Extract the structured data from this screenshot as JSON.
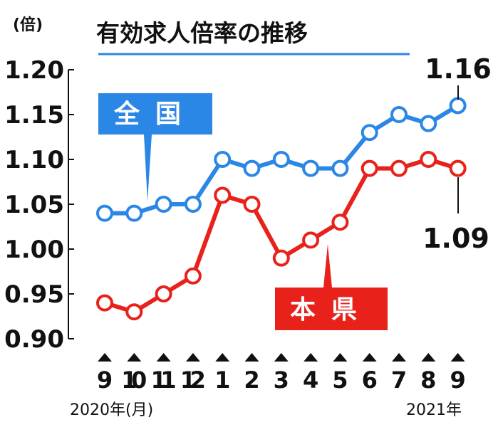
{
  "chart_data": {
    "type": "line",
    "title": "有効求人倍率の推移",
    "ylabel": "(倍)",
    "ylim": [
      0.9,
      1.2
    ],
    "yticks": [
      "1.20",
      "1.15",
      "1.10",
      "1.05",
      "1.00",
      "0.95",
      "0.90"
    ],
    "categories": [
      "9",
      "10",
      "11",
      "12",
      "1",
      "2",
      "3",
      "4",
      "5",
      "6",
      "7",
      "8",
      "9"
    ],
    "x_period_start": "2020年(月)",
    "x_period_end": "2021年",
    "series": [
      {
        "name": "全国",
        "color": "#2b87e6",
        "values": [
          1.04,
          1.04,
          1.05,
          1.05,
          1.1,
          1.09,
          1.1,
          1.09,
          1.09,
          1.13,
          1.15,
          1.14,
          1.16
        ],
        "end_label": "1.16"
      },
      {
        "name": "本県",
        "color": "#e8221b",
        "values": [
          0.94,
          0.93,
          0.95,
          0.97,
          1.06,
          1.05,
          0.99,
          1.01,
          1.03,
          1.09,
          1.09,
          1.1,
          1.09
        ],
        "end_label": "1.09"
      }
    ]
  }
}
